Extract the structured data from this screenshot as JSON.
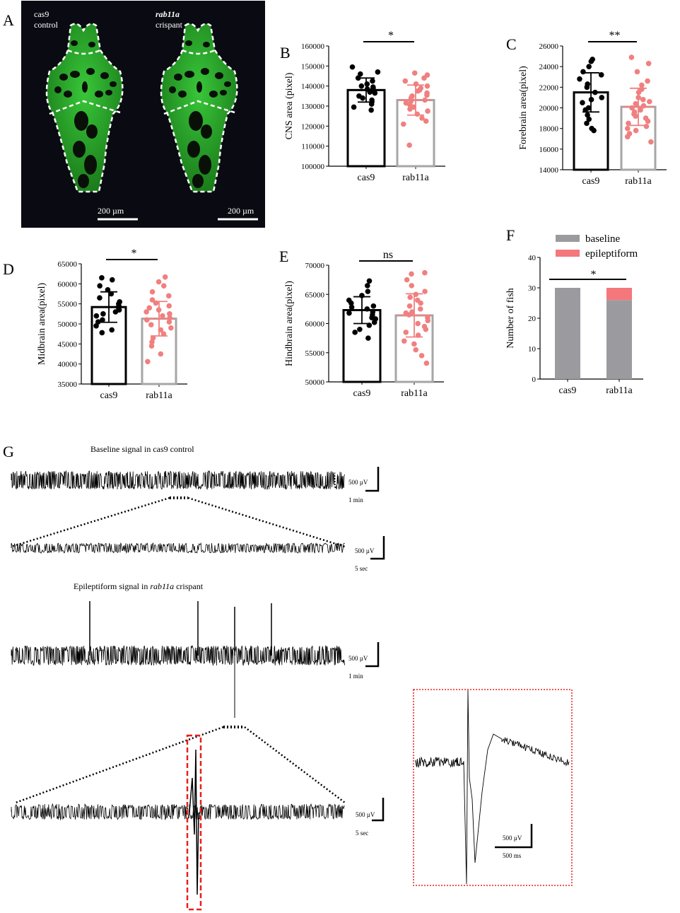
{
  "panels": {
    "A": "A",
    "B": "B",
    "C": "C",
    "D": "D",
    "E": "E",
    "F": "F",
    "G": "G"
  },
  "brain": {
    "left_label": [
      "cas9",
      "control"
    ],
    "right_label_italic": "rab11a",
    "right_label": "crispant",
    "scale_left": "200 µm",
    "scale_right": "200 µm"
  },
  "colors": {
    "cas9": "#000000",
    "rab11a": "#f08080",
    "bar_gray": "#a6a6a6",
    "baseline": "#9b9b9f",
    "epileptiform": "#f4777c",
    "brain_green": "#2fb02f"
  },
  "chart_data": [
    {
      "id": "B",
      "type": "bar",
      "ylabel": "CNS area (pixel)",
      "categories": [
        "cas9",
        "rab11a"
      ],
      "values": [
        138000,
        133000
      ],
      "sd": [
        6000,
        7500
      ],
      "ylim": [
        100000,
        160000
      ],
      "yticks": [
        100000,
        110000,
        120000,
        130000,
        140000,
        150000,
        160000
      ],
      "yticklabels": [
        "100000",
        "110000",
        "120000",
        "130000",
        "140000",
        "150000",
        "160000"
      ],
      "significance": "*",
      "points": [
        [
          149500,
          147000,
          146000,
          144000,
          142500,
          141000,
          140000,
          139500,
          139000,
          138500,
          137500,
          137000,
          136500,
          135000,
          134000,
          133000,
          131000,
          129500,
          128000
        ],
        [
          146500,
          145500,
          144000,
          142500,
          141000,
          140000,
          139000,
          138000,
          137500,
          136500,
          135500,
          135000,
          134000,
          133000,
          132500,
          131500,
          130500,
          129500,
          128500,
          127500,
          126000,
          124000,
          122500,
          121000,
          110500
        ]
      ]
    },
    {
      "id": "C",
      "type": "bar",
      "ylabel": "Forebrain area(pixel)",
      "categories": [
        "cas9",
        "rab11a"
      ],
      "values": [
        21500,
        20100
      ],
      "sd": [
        1900,
        1800
      ],
      "ylim": [
        14000,
        26000
      ],
      "yticks": [
        14000,
        16000,
        18000,
        20000,
        22000,
        24000,
        26000
      ],
      "yticklabels": [
        "14000",
        "16000",
        "18000",
        "20000",
        "22000",
        "24000",
        "26000"
      ],
      "significance": "**",
      "points": [
        [
          24700,
          24500,
          24000,
          23500,
          23200,
          22800,
          22300,
          22000,
          21500,
          21000,
          20800,
          20500,
          20000,
          19800,
          19300,
          18900,
          18500,
          18000,
          17800
        ],
        [
          24900,
          24300,
          23500,
          22600,
          22200,
          21800,
          21500,
          21000,
          20800,
          20600,
          20400,
          20200,
          20000,
          19800,
          19600,
          19400,
          19200,
          19000,
          18700,
          18500,
          18200,
          18000,
          17800,
          17500,
          17200,
          16700
        ]
      ]
    },
    {
      "id": "D",
      "type": "bar",
      "ylabel": "Midbrain area(pixel)",
      "categories": [
        "cas9",
        "rab11a"
      ],
      "values": [
        54200,
        51300
      ],
      "sd": [
        3800,
        4300
      ],
      "ylim": [
        35000,
        65000
      ],
      "yticks": [
        35000,
        40000,
        45000,
        50000,
        55000,
        60000,
        65000
      ],
      "yticklabels": [
        "35000",
        "40000",
        "45000",
        "50000",
        "55000",
        "60000",
        "65000"
      ],
      "significance": "*",
      "points": [
        [
          61500,
          61000,
          59500,
          58500,
          57500,
          56500,
          55500,
          55000,
          54500,
          54000,
          53500,
          53000,
          52500,
          52000,
          51000,
          50500,
          49500,
          48500,
          47800
        ],
        [
          61700,
          60500,
          59500,
          58000,
          57000,
          56000,
          55200,
          54500,
          54000,
          53500,
          53000,
          52500,
          52000,
          51500,
          51000,
          50500,
          49800,
          49000,
          48500,
          47500,
          46500,
          45500,
          44500,
          42500,
          40600
        ]
      ]
    },
    {
      "id": "E",
      "type": "bar",
      "ylabel": "Hindbrain area(pixel)",
      "categories": [
        "cas9",
        "rab11a"
      ],
      "values": [
        62300,
        61400
      ],
      "sd": [
        2300,
        3700
      ],
      "ylim": [
        50000,
        70000
      ],
      "yticks": [
        50000,
        55000,
        60000,
        65000,
        70000
      ],
      "yticklabels": [
        "50000",
        "55000",
        "60000",
        "65000",
        "70000"
      ],
      "significance": "ns",
      "points": [
        [
          67300,
          66500,
          65500,
          64800,
          64000,
          63500,
          63000,
          62800,
          62500,
          62000,
          61800,
          61500,
          61000,
          60800,
          60200,
          59700,
          59000,
          58500,
          57500
        ],
        [
          68700,
          68500,
          67500,
          66500,
          65500,
          65000,
          64500,
          64000,
          63500,
          63000,
          62500,
          62000,
          61800,
          61500,
          61000,
          60500,
          60000,
          59500,
          59000,
          58500,
          58000,
          57000,
          56500,
          55500,
          54500,
          53200
        ]
      ]
    },
    {
      "id": "F",
      "type": "bar",
      "stacked": true,
      "ylabel": "Number of fish",
      "categories": [
        "cas9",
        "rab11a"
      ],
      "series": [
        {
          "name": "baseline",
          "values": [
            30,
            26
          ]
        },
        {
          "name": "epileptiform",
          "values": [
            0,
            4
          ]
        }
      ],
      "ylim": [
        0,
        40
      ],
      "yticks": [
        0,
        10,
        20,
        30,
        40
      ],
      "yticklabels": [
        "0",
        "10",
        "20",
        "30",
        "40"
      ],
      "significance": "*",
      "legend": "top"
    }
  ],
  "traces": {
    "baseline_title": "Baseline signal in cas9 control",
    "epi_title_pre": "Epileptiform signal in ",
    "epi_title_italic": "rab11a",
    "epi_title_post": " crispant",
    "scale_uv": "500 µV",
    "scale_min": "1 min",
    "scale_sec": "5 sec",
    "scale_ms": "500 ms"
  }
}
